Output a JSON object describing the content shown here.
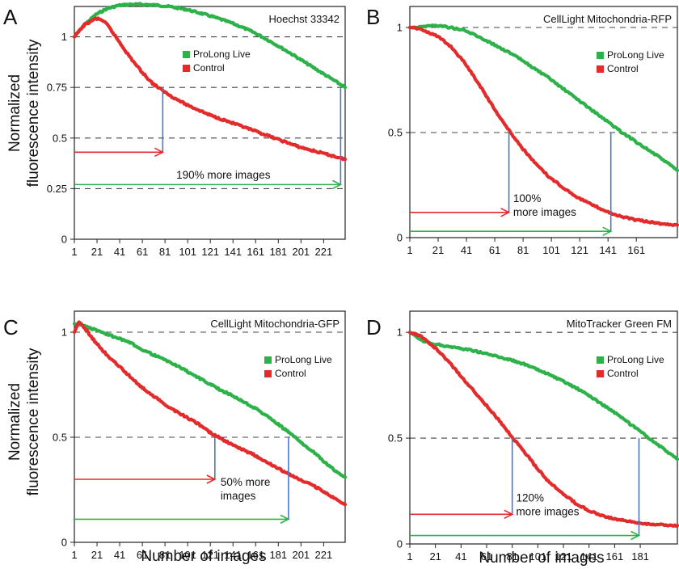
{
  "figure": {
    "ylabel": [
      "Normalized",
      "fluorescence intensity"
    ],
    "xlabel": "Number of images"
  },
  "chart_data": [
    {
      "type": "line",
      "panel": "A",
      "title": "Hoechst 33342",
      "xlim": [
        1,
        240
      ],
      "ylim": [
        0,
        1.15
      ],
      "xticks": [
        1,
        21,
        41,
        61,
        81,
        101,
        121,
        141,
        161,
        181,
        201,
        221
      ],
      "yticks": [
        0,
        0.25,
        0.5,
        0.75,
        1
      ],
      "ytick_labels": [
        "0",
        "0.25",
        "0.5",
        "0.75",
        "1"
      ],
      "hlines": [
        0.25,
        0.5,
        0.75,
        1
      ],
      "series": [
        {
          "name": "ProLong Live",
          "color": "#2db24a",
          "x": [
            1,
            10,
            20,
            30,
            40,
            50,
            60,
            70,
            80,
            90,
            100,
            110,
            120,
            130,
            140,
            150,
            160,
            170,
            180,
            190,
            200,
            210,
            220,
            230,
            240
          ],
          "y": [
            1.0,
            1.06,
            1.11,
            1.14,
            1.155,
            1.16,
            1.16,
            1.158,
            1.153,
            1.145,
            1.135,
            1.12,
            1.105,
            1.087,
            1.068,
            1.045,
            1.02,
            0.99,
            0.958,
            0.925,
            0.89,
            0.855,
            0.82,
            0.785,
            0.75
          ]
        },
        {
          "name": "Control",
          "color": "#e32b2b",
          "x": [
            1,
            10,
            20,
            25,
            30,
            40,
            50,
            60,
            70,
            80,
            90,
            100,
            110,
            120,
            130,
            140,
            150,
            160,
            170,
            180,
            190,
            200,
            210,
            220,
            230,
            240
          ],
          "y": [
            1.0,
            1.06,
            1.09,
            1.085,
            1.06,
            0.98,
            0.9,
            0.83,
            0.77,
            0.73,
            0.695,
            0.665,
            0.64,
            0.615,
            0.595,
            0.575,
            0.555,
            0.535,
            0.515,
            0.495,
            0.475,
            0.455,
            0.44,
            0.425,
            0.41,
            0.395
          ]
        }
      ],
      "markers": [
        {
          "x": 79,
          "y": 0.75,
          "arrow_y": 0.43,
          "color": "#e32b2b",
          "from_x": 1
        },
        {
          "x": 236,
          "y": 0.75,
          "arrow_y": 0.27,
          "color": "#2db24a",
          "from_x": 1
        }
      ],
      "annotation": [
        "190% more images"
      ],
      "annotation_pos": {
        "x": 91,
        "y": 0.3
      },
      "legend": "upper-center"
    },
    {
      "type": "line",
      "panel": "B",
      "title": "CellLight Mitochondria-RFP",
      "xlim": [
        1,
        190
      ],
      "ylim": [
        0,
        1.1
      ],
      "xticks": [
        1,
        21,
        41,
        61,
        81,
        101,
        121,
        141,
        161
      ],
      "yticks": [
        0,
        0.5,
        1
      ],
      "ytick_labels": [
        "0",
        "0.5",
        "1"
      ],
      "hlines": [
        0.5,
        1
      ],
      "series": [
        {
          "name": "ProLong Live",
          "color": "#2db24a",
          "x": [
            1,
            10,
            20,
            30,
            40,
            50,
            60,
            70,
            80,
            90,
            100,
            110,
            120,
            130,
            140,
            150,
            160,
            170,
            180,
            190
          ],
          "y": [
            1.0,
            1.005,
            1.01,
            1.0,
            0.985,
            0.955,
            0.92,
            0.885,
            0.845,
            0.8,
            0.755,
            0.705,
            0.655,
            0.605,
            0.555,
            0.505,
            0.46,
            0.415,
            0.37,
            0.32
          ]
        },
        {
          "name": "Control",
          "color": "#e32b2b",
          "x": [
            1,
            10,
            20,
            30,
            40,
            50,
            60,
            70,
            80,
            90,
            100,
            110,
            120,
            130,
            140,
            150,
            160,
            170,
            180,
            190
          ],
          "y": [
            1.0,
            0.99,
            0.96,
            0.91,
            0.83,
            0.73,
            0.62,
            0.52,
            0.43,
            0.35,
            0.285,
            0.235,
            0.19,
            0.155,
            0.125,
            0.1,
            0.085,
            0.075,
            0.065,
            0.06
          ]
        }
      ],
      "markers": [
        {
          "x": 71,
          "y": 0.5,
          "arrow_y": 0.12,
          "color": "#e32b2b",
          "from_x": 1
        },
        {
          "x": 143,
          "y": 0.5,
          "arrow_y": 0.03,
          "color": "#2db24a",
          "from_x": 1
        }
      ],
      "annotation": [
        "100%",
        "more images"
      ],
      "annotation_pos": {
        "x": 74,
        "y": 0.17
      },
      "legend": "upper-right"
    },
    {
      "type": "line",
      "panel": "C",
      "title": "CellLight Mitochondria-GFP",
      "xlim": [
        1,
        240
      ],
      "ylim": [
        0,
        1.1
      ],
      "xticks": [
        1,
        21,
        41,
        61,
        81,
        101,
        121,
        141,
        161,
        181,
        201,
        221
      ],
      "yticks": [
        0,
        0.5,
        1
      ],
      "ytick_labels": [
        "0",
        "0.5",
        "1"
      ],
      "hlines": [
        0.5,
        1
      ],
      "series": [
        {
          "name": "ProLong Live",
          "color": "#2db24a",
          "x": [
            1,
            10,
            20,
            30,
            40,
            50,
            60,
            70,
            80,
            90,
            100,
            110,
            120,
            130,
            140,
            150,
            160,
            170,
            180,
            190,
            200,
            210,
            220,
            230,
            240
          ],
          "y": [
            1.04,
            1.03,
            1.01,
            0.99,
            0.97,
            0.95,
            0.92,
            0.895,
            0.87,
            0.845,
            0.815,
            0.785,
            0.755,
            0.725,
            0.7,
            0.67,
            0.64,
            0.605,
            0.565,
            0.525,
            0.48,
            0.44,
            0.39,
            0.345,
            0.31
          ]
        },
        {
          "name": "Control",
          "color": "#e32b2b",
          "x": [
            1,
            5,
            10,
            20,
            30,
            40,
            50,
            60,
            70,
            80,
            90,
            100,
            110,
            120,
            130,
            140,
            150,
            160,
            170,
            180,
            190,
            200,
            210,
            220,
            230,
            240
          ],
          "y": [
            1.0,
            1.05,
            1.02,
            0.95,
            0.89,
            0.84,
            0.79,
            0.74,
            0.7,
            0.66,
            0.625,
            0.595,
            0.565,
            0.525,
            0.495,
            0.465,
            0.44,
            0.415,
            0.385,
            0.355,
            0.325,
            0.3,
            0.275,
            0.245,
            0.21,
            0.18
          ]
        }
      ],
      "markers": [
        {
          "x": 125,
          "y": 0.5,
          "arrow_y": 0.3,
          "color": "#e32b2b",
          "from_x": 1
        },
        {
          "x": 190,
          "y": 0.5,
          "arrow_y": 0.11,
          "color": "#2db24a",
          "from_x": 1
        }
      ],
      "annotation": [
        "50% more",
        "images"
      ],
      "annotation_pos": {
        "x": 130,
        "y": 0.27
      },
      "legend": "upper-right"
    },
    {
      "type": "line",
      "panel": "D",
      "title": "MitoTracker Green FM",
      "xlim": [
        1,
        210
      ],
      "ylim": [
        0,
        1.1
      ],
      "xticks": [
        1,
        21,
        41,
        61,
        81,
        101,
        121,
        141,
        161,
        181
      ],
      "yticks": [
        0,
        0.5,
        1
      ],
      "ytick_labels": [
        "0",
        "0.5",
        "1"
      ],
      "hlines": [
        0.5,
        1
      ],
      "series": [
        {
          "name": "ProLong Live",
          "color": "#2db24a",
          "x": [
            1,
            10,
            20,
            30,
            40,
            50,
            60,
            70,
            80,
            90,
            100,
            110,
            120,
            130,
            140,
            150,
            160,
            170,
            180,
            190,
            200,
            210
          ],
          "y": [
            1.0,
            0.96,
            0.945,
            0.935,
            0.925,
            0.915,
            0.9,
            0.885,
            0.87,
            0.85,
            0.825,
            0.8,
            0.77,
            0.74,
            0.705,
            0.665,
            0.625,
            0.58,
            0.535,
            0.49,
            0.445,
            0.4
          ]
        },
        {
          "name": "Control",
          "color": "#e32b2b",
          "x": [
            1,
            10,
            20,
            30,
            40,
            50,
            60,
            70,
            80,
            90,
            100,
            110,
            120,
            130,
            140,
            150,
            160,
            170,
            180,
            190,
            200,
            210
          ],
          "y": [
            1.0,
            0.98,
            0.93,
            0.87,
            0.8,
            0.73,
            0.66,
            0.59,
            0.51,
            0.44,
            0.36,
            0.29,
            0.24,
            0.195,
            0.16,
            0.135,
            0.12,
            0.108,
            0.1,
            0.094,
            0.09,
            0.087
          ]
        }
      ],
      "markers": [
        {
          "x": 81,
          "y": 0.5,
          "arrow_y": 0.14,
          "color": "#e32b2b",
          "from_x": 1
        },
        {
          "x": 180,
          "y": 0.5,
          "arrow_y": 0.04,
          "color": "#2db24a",
          "from_x": 1
        }
      ],
      "annotation": [
        "120%",
        "more images"
      ],
      "annotation_pos": {
        "x": 84,
        "y": 0.2
      },
      "legend": "upper-right"
    }
  ]
}
